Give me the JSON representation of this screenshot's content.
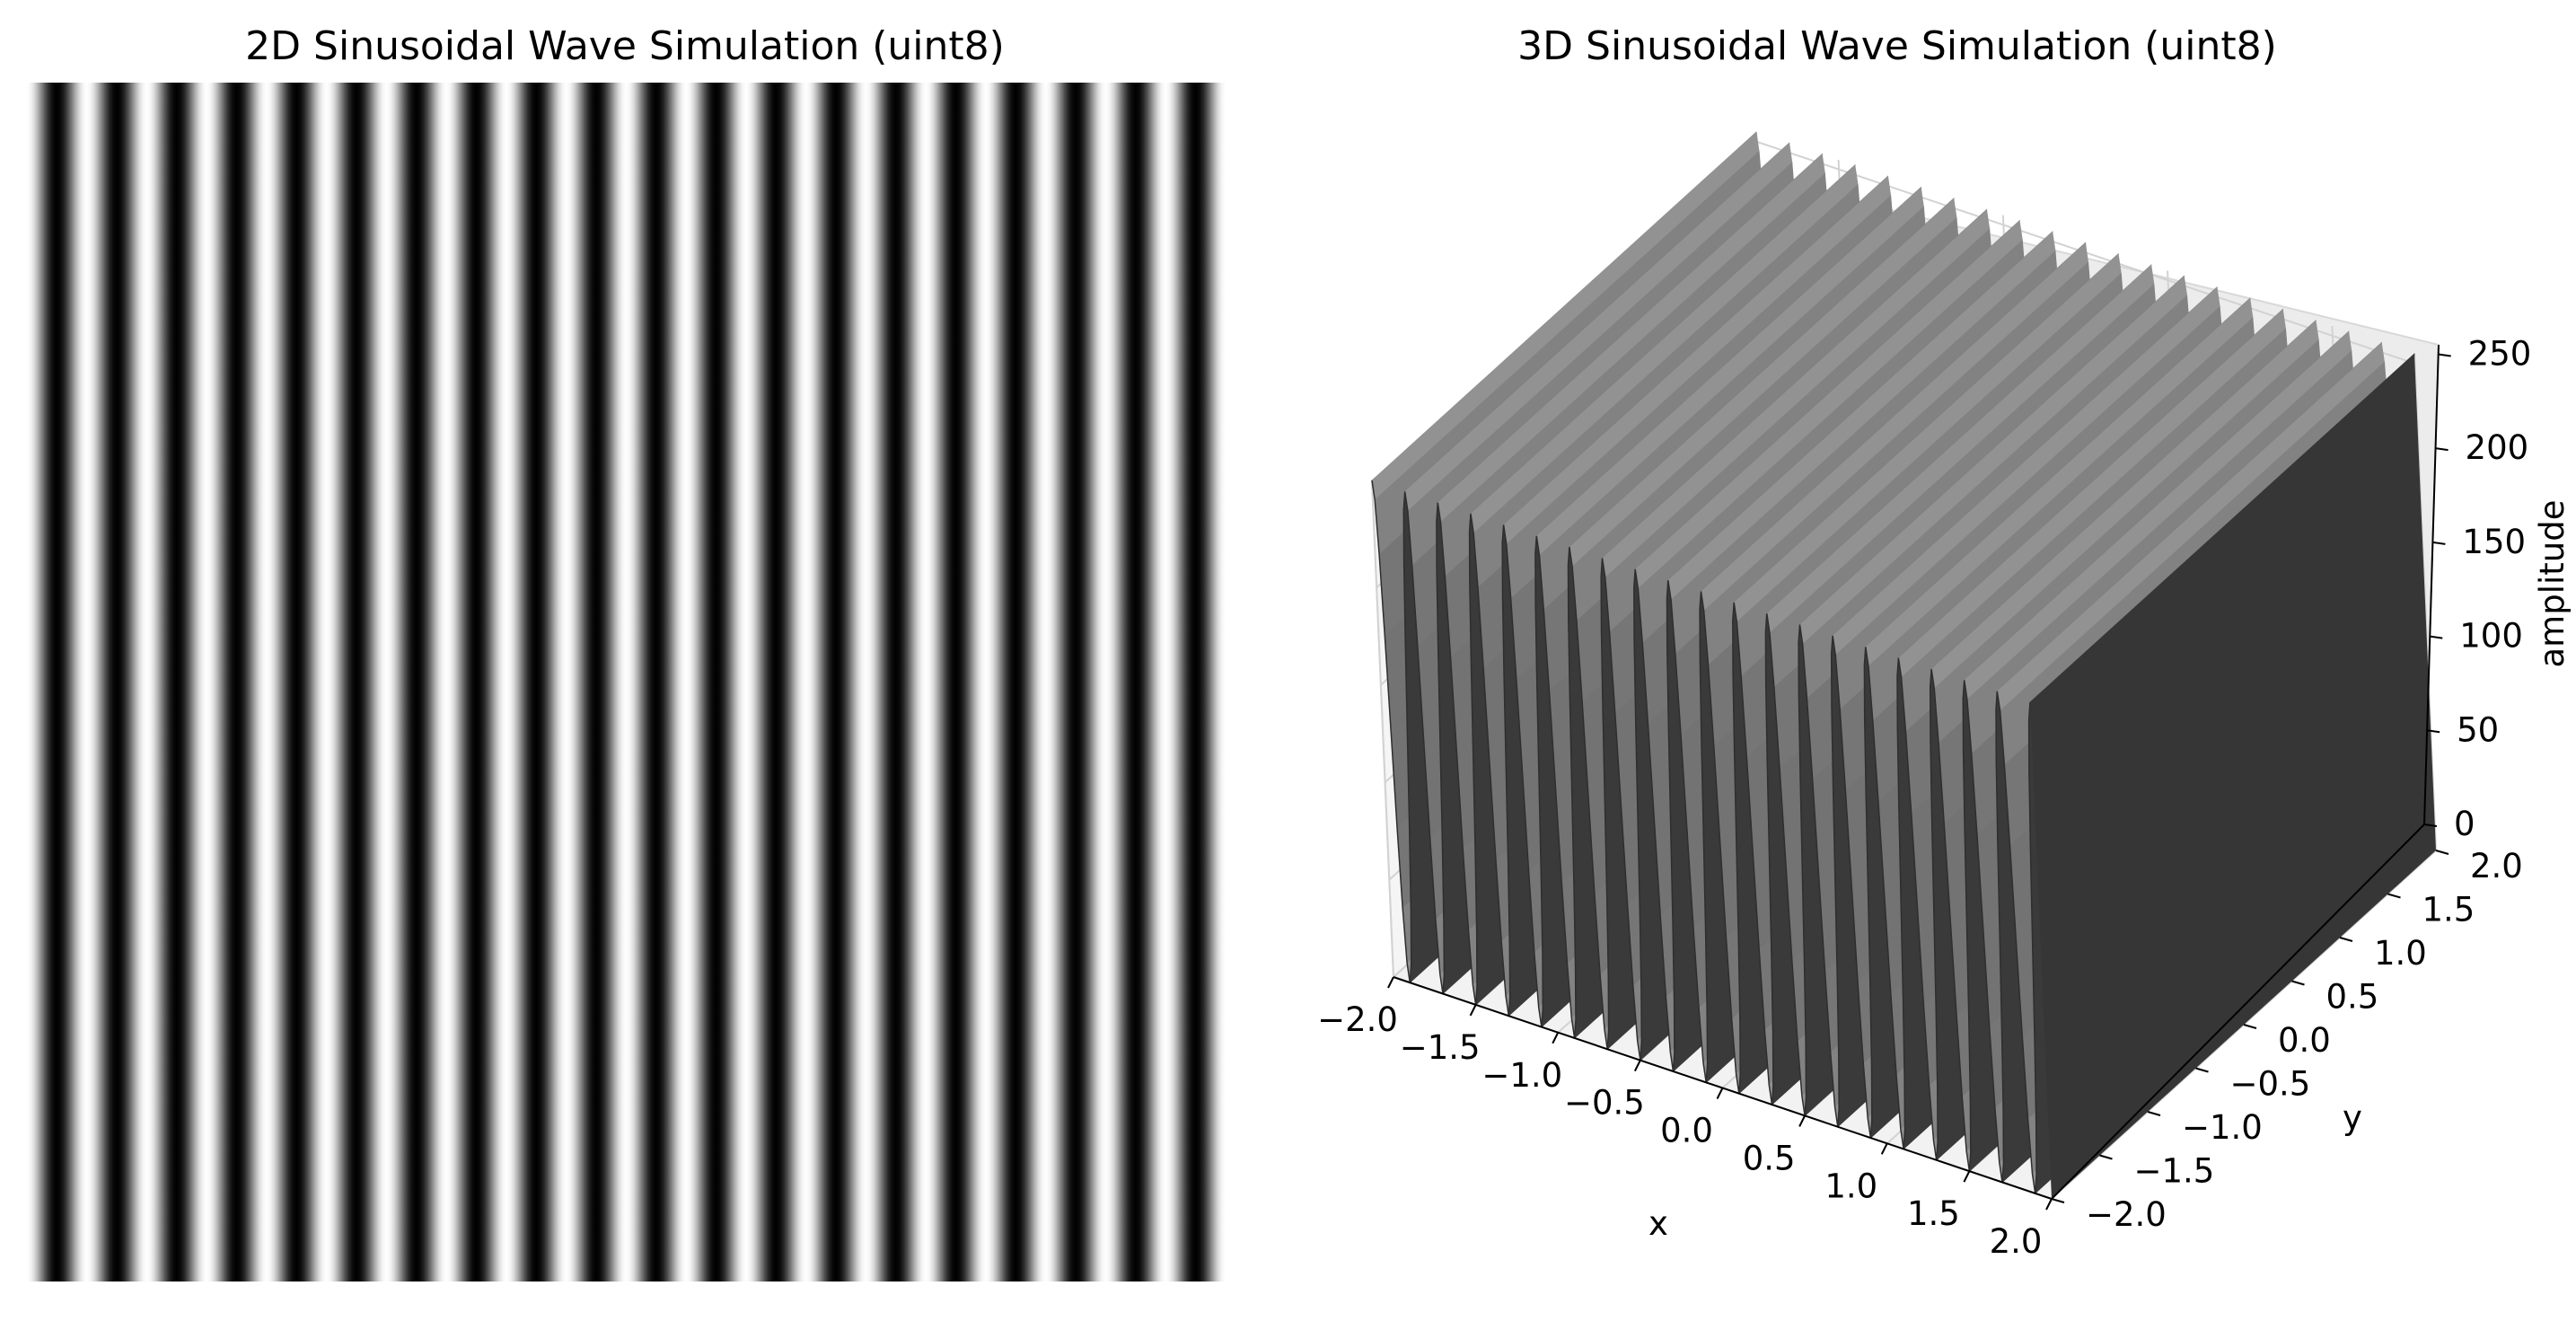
{
  "chart_data": [
    {
      "type": "heatmap",
      "title": "2D Sinusoidal Wave Simulation (uint8)",
      "colormap": "gray",
      "x_range": [
        -2.0,
        2.0
      ],
      "y_range": [
        -2.0,
        2.0
      ],
      "periods_across": 20,
      "value_range": [
        0,
        255
      ],
      "axes_visible": false
    },
    {
      "type": "surface3d",
      "title": "3D Sinusoidal Wave Simulation (uint8)",
      "xlabel": "x",
      "ylabel": "y",
      "zlabel": "amplitude",
      "xlim": [
        -2.0,
        2.0
      ],
      "ylim": [
        -2.0,
        2.0
      ],
      "zlim": [
        0,
        255
      ],
      "x_ticks": [
        "−2.0",
        "−1.5",
        "−1.0",
        "−0.5",
        "0.0",
        "0.5",
        "1.0",
        "1.5",
        "2.0"
      ],
      "y_ticks": [
        "−2.0",
        "−1.5",
        "−1.0",
        "−0.5",
        "0.0",
        "0.5",
        "1.0",
        "1.5",
        "2.0"
      ],
      "z_ticks": [
        "0",
        "50",
        "100",
        "150",
        "200",
        "250"
      ],
      "periods_across": 20,
      "surface_color": "#3a3a3a",
      "grid": true
    }
  ]
}
